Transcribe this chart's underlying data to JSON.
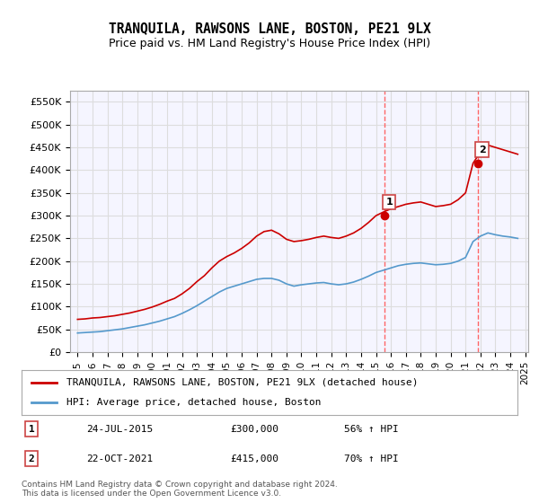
{
  "title": "TRANQUILA, RAWSONS LANE, BOSTON, PE21 9LX",
  "subtitle": "Price paid vs. HM Land Registry's House Price Index (HPI)",
  "legend_line1": "TRANQUILA, RAWSONS LANE, BOSTON, PE21 9LX (detached house)",
  "legend_line2": "HPI: Average price, detached house, Boston",
  "footer": "Contains HM Land Registry data © Crown copyright and database right 2024.\nThis data is licensed under the Open Government Licence v3.0.",
  "transaction1_date": "24-JUL-2015",
  "transaction1_price": "£300,000",
  "transaction1_hpi": "56% ↑ HPI",
  "transaction2_date": "22-OCT-2021",
  "transaction2_price": "£415,000",
  "transaction2_hpi": "70% ↑ HPI",
  "red_line_color": "#cc0000",
  "blue_line_color": "#5599cc",
  "vline_color": "#ff6666",
  "grid_color": "#dddddd",
  "background_color": "#ffffff",
  "plot_background": "#f5f5ff",
  "ylim": [
    0,
    575000
  ],
  "yticks": [
    0,
    50000,
    100000,
    150000,
    200000,
    250000,
    300000,
    350000,
    400000,
    450000,
    500000,
    550000
  ],
  "ytick_labels": [
    "£0",
    "£50K",
    "£100K",
    "£150K",
    "£200K",
    "£250K",
    "£300K",
    "£350K",
    "£400K",
    "£450K",
    "£500K",
    "£550K"
  ],
  "red_x": [
    1995.0,
    1995.5,
    1996.0,
    1996.5,
    1997.0,
    1997.5,
    1998.0,
    1998.5,
    1999.0,
    1999.5,
    2000.0,
    2000.5,
    2001.0,
    2001.5,
    2002.0,
    2002.5,
    2003.0,
    2003.5,
    2004.0,
    2004.5,
    2005.0,
    2005.5,
    2006.0,
    2006.5,
    2007.0,
    2007.5,
    2008.0,
    2008.5,
    2009.0,
    2009.5,
    2010.0,
    2010.5,
    2011.0,
    2011.5,
    2012.0,
    2012.5,
    2013.0,
    2013.5,
    2014.0,
    2014.5,
    2015.0,
    2015.5,
    2016.0,
    2016.5,
    2017.0,
    2017.5,
    2018.0,
    2018.5,
    2019.0,
    2019.5,
    2020.0,
    2020.5,
    2021.0,
    2021.5,
    2022.0,
    2022.5,
    2023.0,
    2023.5,
    2024.0,
    2024.5
  ],
  "red_y": [
    72000,
    73000,
    75000,
    76000,
    78000,
    80000,
    83000,
    86000,
    90000,
    94000,
    99000,
    105000,
    112000,
    118000,
    128000,
    140000,
    155000,
    168000,
    185000,
    200000,
    210000,
    218000,
    228000,
    240000,
    255000,
    265000,
    268000,
    260000,
    248000,
    243000,
    245000,
    248000,
    252000,
    255000,
    252000,
    250000,
    255000,
    262000,
    272000,
    285000,
    300000,
    308000,
    315000,
    320000,
    325000,
    328000,
    330000,
    325000,
    320000,
    322000,
    325000,
    335000,
    350000,
    415000,
    440000,
    455000,
    450000,
    445000,
    440000,
    435000
  ],
  "blue_x": [
    1995.0,
    1995.5,
    1996.0,
    1996.5,
    1997.0,
    1997.5,
    1998.0,
    1998.5,
    1999.0,
    1999.5,
    2000.0,
    2000.5,
    2001.0,
    2001.5,
    2002.0,
    2002.5,
    2003.0,
    2003.5,
    2004.0,
    2004.5,
    2005.0,
    2005.5,
    2006.0,
    2006.5,
    2007.0,
    2007.5,
    2008.0,
    2008.5,
    2009.0,
    2009.5,
    2010.0,
    2010.5,
    2011.0,
    2011.5,
    2012.0,
    2012.5,
    2013.0,
    2013.5,
    2014.0,
    2014.5,
    2015.0,
    2015.5,
    2016.0,
    2016.5,
    2017.0,
    2017.5,
    2018.0,
    2018.5,
    2019.0,
    2019.5,
    2020.0,
    2020.5,
    2021.0,
    2021.5,
    2022.0,
    2022.5,
    2023.0,
    2023.5,
    2024.0,
    2024.5
  ],
  "blue_y": [
    42000,
    43000,
    44000,
    45000,
    47000,
    49000,
    51000,
    54000,
    57000,
    60000,
    64000,
    68000,
    73000,
    78000,
    85000,
    93000,
    102000,
    112000,
    122000,
    132000,
    140000,
    145000,
    150000,
    155000,
    160000,
    162000,
    162000,
    158000,
    150000,
    145000,
    148000,
    150000,
    152000,
    153000,
    150000,
    148000,
    150000,
    154000,
    160000,
    167000,
    175000,
    180000,
    185000,
    190000,
    193000,
    195000,
    196000,
    194000,
    192000,
    193000,
    195000,
    200000,
    208000,
    243000,
    255000,
    262000,
    258000,
    255000,
    253000,
    250000
  ],
  "vline1_x": 2015.58,
  "vline2_x": 2021.81,
  "marker1_x": 2015.58,
  "marker1_y": 300000,
  "marker2_x": 2021.81,
  "marker2_y": 415000,
  "xmin": 1994.5,
  "xmax": 2025.2
}
